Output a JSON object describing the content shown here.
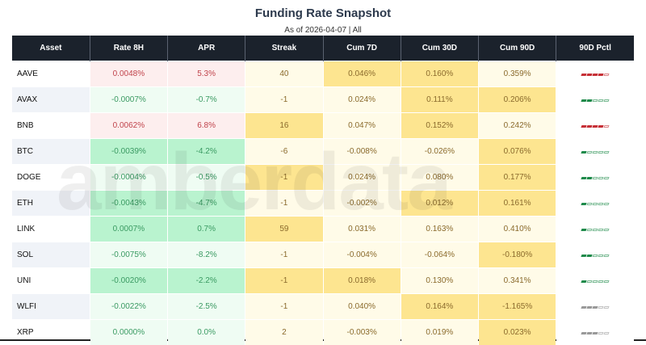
{
  "title": "Funding Rate Snapshot",
  "subtitle": "As of 2026-04-07 | All",
  "watermark": "amberdata",
  "colors": {
    "header_bg": "#1b222c",
    "pink": "#fdeeee",
    "light_green": "#effcf3",
    "strong_green": "#b9f3cf",
    "light_yellow": "#fffbe8",
    "yellow": "#fde590",
    "pctl_red": "#c62f36",
    "pctl_green": "#1e8a4a",
    "pctl_gray": "#999999"
  },
  "columns": [
    "Asset",
    "Rate 8H",
    "APR",
    "Streak",
    "Cum 7D",
    "Cum 30D",
    "Cum 90D",
    "90D Pctl"
  ],
  "rows": [
    {
      "asset": "AAVE",
      "rate": "0.0048%",
      "apr": "5.3%",
      "streak": "40",
      "c7": "0.046%",
      "c30": "0.160%",
      "c90": "0.359%",
      "pctl": 4,
      "pctl_color": "red",
      "rc": "pink",
      "sc": "ly",
      "c7c": "y",
      "c30c": "y",
      "c90c": "ly"
    },
    {
      "asset": "AVAX",
      "rate": "-0.0007%",
      "apr": "-0.7%",
      "streak": "-1",
      "c7": "0.024%",
      "c30": "0.111%",
      "c90": "0.206%",
      "pctl": 2,
      "pctl_color": "green",
      "rc": "lg",
      "sc": "ly",
      "c7c": "ly",
      "c30c": "y",
      "c90c": "y"
    },
    {
      "asset": "BNB",
      "rate": "0.0062%",
      "apr": "6.8%",
      "streak": "16",
      "c7": "0.047%",
      "c30": "0.152%",
      "c90": "0.242%",
      "pctl": 4,
      "pctl_color": "red",
      "rc": "pink",
      "sc": "y",
      "c7c": "ly",
      "c30c": "y",
      "c90c": "ly"
    },
    {
      "asset": "BTC",
      "rate": "-0.0039%",
      "apr": "-4.2%",
      "streak": "-6",
      "c7": "-0.008%",
      "c30": "-0.026%",
      "c90": "0.076%",
      "pctl": 1,
      "pctl_color": "green",
      "rc": "sg",
      "sc": "ly",
      "c7c": "ly",
      "c30c": "ly",
      "c90c": "y"
    },
    {
      "asset": "DOGE",
      "rate": "-0.0004%",
      "apr": "-0.5%",
      "streak": "-1",
      "c7": "0.024%",
      "c30": "0.080%",
      "c90": "0.177%",
      "pctl": 2,
      "pctl_color": "green",
      "rc": "lg",
      "sc": "y",
      "c7c": "ly",
      "c30c": "ly",
      "c90c": "y"
    },
    {
      "asset": "ETH",
      "rate": "-0.0043%",
      "apr": "-4.7%",
      "streak": "-1",
      "c7": "-0.002%",
      "c30": "0.012%",
      "c90": "0.161%",
      "pctl": 1,
      "pctl_color": "green",
      "rc": "sg",
      "sc": "ly",
      "c7c": "ly",
      "c30c": "y",
      "c90c": "y"
    },
    {
      "asset": "LINK",
      "rate": "0.0007%",
      "apr": "0.7%",
      "streak": "59",
      "c7": "0.031%",
      "c30": "0.163%",
      "c90": "0.410%",
      "pctl": 1,
      "pctl_color": "green",
      "rc": "sg",
      "sc": "y",
      "c7c": "ly",
      "c30c": "ly",
      "c90c": "ly"
    },
    {
      "asset": "SOL",
      "rate": "-0.0075%",
      "apr": "-8.2%",
      "streak": "-1",
      "c7": "-0.004%",
      "c30": "-0.064%",
      "c90": "-0.180%",
      "pctl": 2,
      "pctl_color": "green",
      "rc": "lg",
      "sc": "ly",
      "c7c": "ly",
      "c30c": "ly",
      "c90c": "y"
    },
    {
      "asset": "UNI",
      "rate": "-0.0020%",
      "apr": "-2.2%",
      "streak": "-1",
      "c7": "0.018%",
      "c30": "0.130%",
      "c90": "0.341%",
      "pctl": 1,
      "pctl_color": "green",
      "rc": "sg",
      "sc": "y",
      "c7c": "y",
      "c30c": "ly",
      "c90c": "ly"
    },
    {
      "asset": "WLFI",
      "rate": "-0.0022%",
      "apr": "-2.5%",
      "streak": "-1",
      "c7": "0.040%",
      "c30": "0.164%",
      "c90": "-1.165%",
      "pctl": 3,
      "pctl_color": "gray",
      "rc": "lg",
      "sc": "ly",
      "c7c": "ly",
      "c30c": "y",
      "c90c": "y"
    },
    {
      "asset": "XRP",
      "rate": "0.0000%",
      "apr": "0.0%",
      "streak": "2",
      "c7": "-0.003%",
      "c30": "0.019%",
      "c90": "0.023%",
      "pctl": 3,
      "pctl_color": "gray",
      "rc": "lg",
      "sc": "ly",
      "c7c": "ly",
      "c30c": "ly",
      "c90c": "y"
    }
  ]
}
